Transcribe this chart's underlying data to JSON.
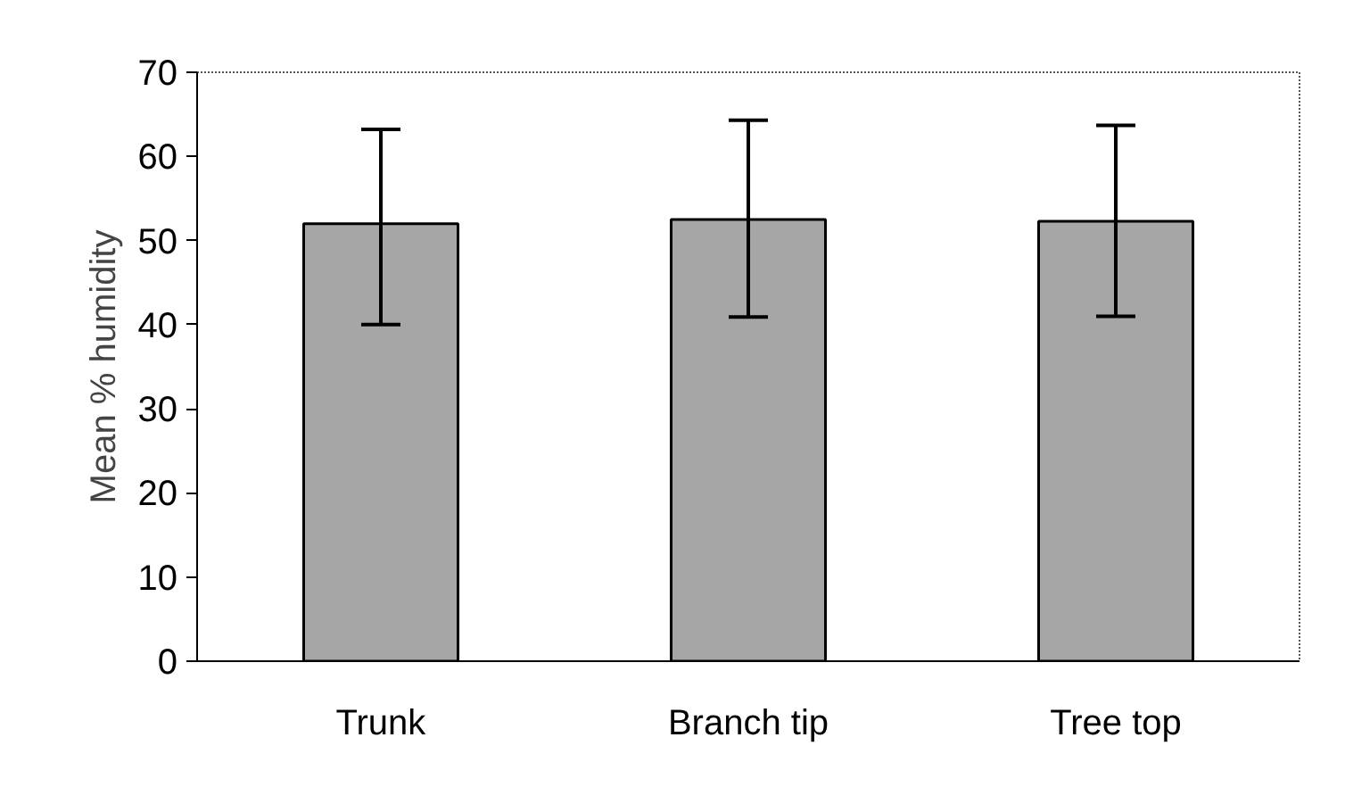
{
  "chart_data": {
    "type": "bar",
    "ylabel": "Mean % humidity",
    "categories": [
      "Trunk",
      "Branch tip",
      "Tree top"
    ],
    "values": [
      52,
      52.5,
      52.3
    ],
    "errors": [
      [
        40,
        63.2
      ],
      [
        40.9,
        64.3
      ],
      [
        41,
        63.7
      ]
    ],
    "color": "#a6a6a6",
    "ylim": [
      0,
      70
    ],
    "yticks": [
      0,
      10,
      20,
      30,
      40,
      50,
      60,
      70
    ],
    "grid": false
  }
}
